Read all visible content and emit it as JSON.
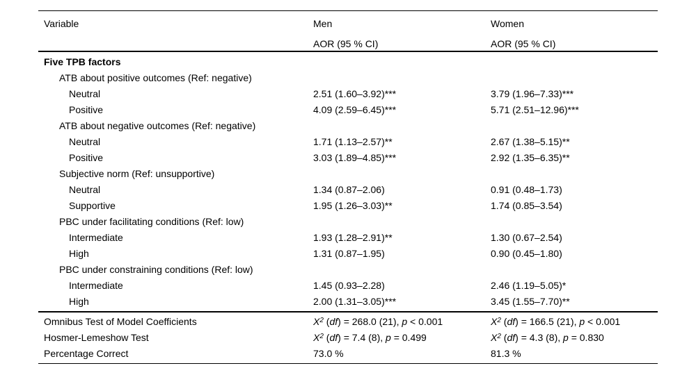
{
  "table": {
    "colors": {
      "text": "#000000",
      "background": "#ffffff",
      "rule": "#000000"
    },
    "header": {
      "col_variable": "Variable",
      "col_men": "Men",
      "col_women": "Women",
      "subheader_men": "AOR (95 % CI)",
      "subheader_women": "AOR (95 % CI)"
    },
    "rows": [
      {
        "label": "Five TPB factors",
        "indent": 0,
        "bold": true,
        "men": "",
        "women": ""
      },
      {
        "label": "ATB about positive outcomes (Ref: negative)",
        "indent": 1,
        "bold": false,
        "men": "",
        "women": ""
      },
      {
        "label": "Neutral",
        "indent": 2,
        "bold": false,
        "men": "2.51 (1.60–3.92)***",
        "women": "3.79 (1.96–7.33)***"
      },
      {
        "label": "Positive",
        "indent": 2,
        "bold": false,
        "men": "4.09 (2.59–6.45)***",
        "women": "5.71 (2.51–12.96)***"
      },
      {
        "label": "ATB about negative outcomes (Ref: negative)",
        "indent": 1,
        "bold": false,
        "men": "",
        "women": ""
      },
      {
        "label": "Neutral",
        "indent": 2,
        "bold": false,
        "men": "1.71 (1.13–2.57)**",
        "women": "2.67 (1.38–5.15)**"
      },
      {
        "label": "Positive",
        "indent": 2,
        "bold": false,
        "men": "3.03 (1.89–4.85)***",
        "women": "2.92 (1.35–6.35)**"
      },
      {
        "label": "Subjective norm (Ref: unsupportive)",
        "indent": 1,
        "bold": false,
        "men": "",
        "women": ""
      },
      {
        "label": "Neutral",
        "indent": 2,
        "bold": false,
        "men": "1.34 (0.87–2.06)",
        "women": "0.91 (0.48–1.73)"
      },
      {
        "label": "Supportive",
        "indent": 2,
        "bold": false,
        "men": "1.95 (1.26–3.03)**",
        "women": "1.74 (0.85–3.54)"
      },
      {
        "label": "PBC under facilitating conditions (Ref: low)",
        "indent": 1,
        "bold": false,
        "men": "",
        "women": ""
      },
      {
        "label": "Intermediate",
        "indent": 2,
        "bold": false,
        "men": "1.93 (1.28–2.91)**",
        "women": "1.30 (0.67–2.54)"
      },
      {
        "label": "High",
        "indent": 2,
        "bold": false,
        "men": "1.31 (0.87–1.95)",
        "women": "0.90 (0.45–1.80)"
      },
      {
        "label": "PBC under constraining conditions (Ref: low)",
        "indent": 1,
        "bold": false,
        "men": "",
        "women": ""
      },
      {
        "label": "Intermediate",
        "indent": 2,
        "bold": false,
        "men": "1.45 (0.93–2.28)",
        "women": "2.46 (1.19–5.05)*"
      },
      {
        "label": "High",
        "indent": 2,
        "bold": false,
        "men": "2.00 (1.31–3.05)***",
        "women": "3.45 (1.55–7.70)**"
      }
    ],
    "footer_rows": [
      {
        "label": "Omnibus Test of Model Coefficients",
        "men_parts": [
          [
            "X",
            "i"
          ],
          [
            "2",
            "sup"
          ],
          [
            " (",
            "n"
          ],
          [
            "df",
            "i"
          ],
          [
            ") = 268.0 (21), ",
            "n"
          ],
          [
            "p",
            "i"
          ],
          [
            " < 0.001",
            "n"
          ]
        ],
        "women_parts": [
          [
            "X",
            "i"
          ],
          [
            "2",
            "sup"
          ],
          [
            " (",
            "n"
          ],
          [
            "df",
            "i"
          ],
          [
            ") = 166.5 (21), ",
            "n"
          ],
          [
            "p",
            "i"
          ],
          [
            " < 0.001",
            "n"
          ]
        ]
      },
      {
        "label": "Hosmer-Lemeshow Test",
        "men_parts": [
          [
            "X",
            "i"
          ],
          [
            "2",
            "sup"
          ],
          [
            " (",
            "n"
          ],
          [
            "df",
            "i"
          ],
          [
            ") = 7.4 (8), ",
            "n"
          ],
          [
            "p",
            "i"
          ],
          [
            " = 0.499",
            "n"
          ]
        ],
        "women_parts": [
          [
            "X",
            "i"
          ],
          [
            "2",
            "sup"
          ],
          [
            " (",
            "n"
          ],
          [
            "df",
            "i"
          ],
          [
            ") = 4.3 (8), ",
            "n"
          ],
          [
            "p",
            "i"
          ],
          [
            " = 0.830",
            "n"
          ]
        ]
      },
      {
        "label": "Percentage Correct",
        "men_parts": [
          [
            "73.0 %",
            "n"
          ]
        ],
        "women_parts": [
          [
            "81.3 %",
            "n"
          ]
        ]
      }
    ]
  }
}
